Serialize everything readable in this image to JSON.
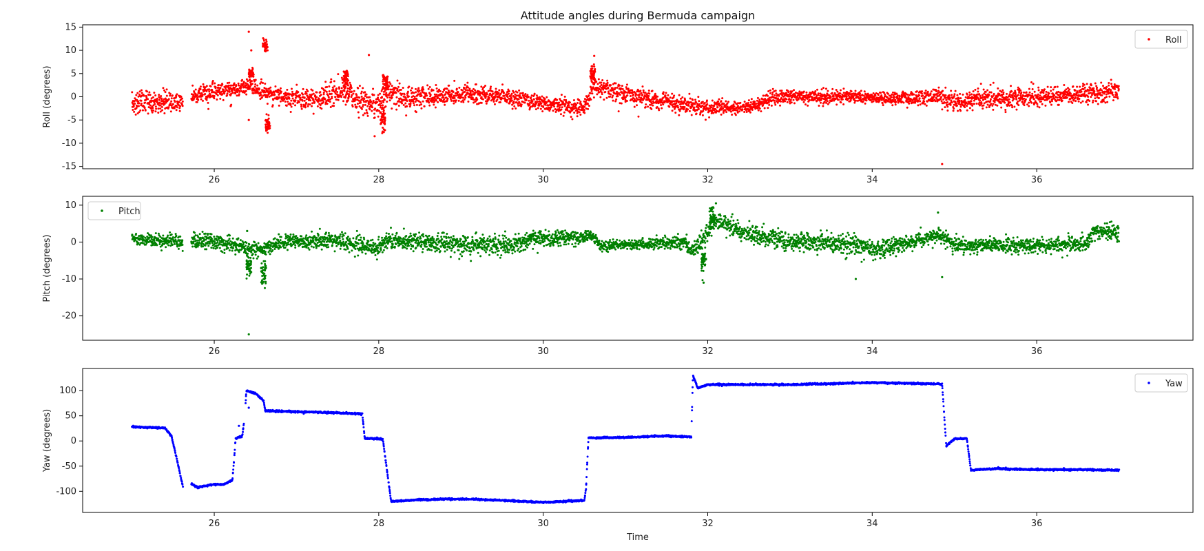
{
  "figure": {
    "title": "Attitude angles during Bermuda campaign",
    "xlabel": "Time"
  },
  "chart_data": [
    {
      "type": "scatter",
      "name": "roll-panel",
      "ylabel": "Roll (degrees)",
      "xlim": [
        24.4,
        37.9
      ],
      "ylim": [
        -15.5,
        15.5
      ],
      "xticks": [
        26,
        28,
        30,
        32,
        34,
        36
      ],
      "yticks": [
        -15,
        -10,
        -5,
        0,
        5,
        10,
        15
      ],
      "legend": "top-right",
      "series": [
        {
          "name": "Roll",
          "color": "#ff0000",
          "gaps": [
            [
              25.62,
              25.72
            ]
          ],
          "trend": [
            [
              25.0,
              -1.5
            ],
            [
              25.3,
              -1.2
            ],
            [
              25.62,
              -1.0
            ],
            [
              25.72,
              0.3
            ],
            [
              26.0,
              1.0
            ],
            [
              26.3,
              1.5
            ],
            [
              26.4,
              2.5
            ],
            [
              26.6,
              1.0
            ],
            [
              26.8,
              0.2
            ],
            [
              27.3,
              -0.5
            ],
            [
              27.55,
              1.5
            ],
            [
              27.7,
              -0.5
            ],
            [
              28.0,
              -2.0
            ],
            [
              28.1,
              1.0
            ],
            [
              28.3,
              0.0
            ],
            [
              29.0,
              0.5
            ],
            [
              29.5,
              0.0
            ],
            [
              30.0,
              -1.5
            ],
            [
              30.5,
              -2.5
            ],
            [
              30.6,
              2.0
            ],
            [
              31.0,
              0.5
            ],
            [
              31.5,
              -1.0
            ],
            [
              32.0,
              -2.5
            ],
            [
              32.6,
              -2.0
            ],
            [
              32.8,
              0.0
            ],
            [
              33.5,
              0.0
            ],
            [
              33.9,
              0.0
            ],
            [
              34.2,
              -0.5
            ],
            [
              34.8,
              0.0
            ],
            [
              35.0,
              -1.5
            ],
            [
              35.2,
              -0.5
            ],
            [
              36.0,
              0.0
            ],
            [
              36.5,
              0.5
            ],
            [
              37.0,
              1.0
            ]
          ],
          "spread": [
            [
              25.0,
              2.5
            ],
            [
              26.0,
              1.5
            ],
            [
              27.0,
              1.8
            ],
            [
              28.0,
              2.5
            ],
            [
              29.0,
              1.8
            ],
            [
              30.0,
              1.6
            ],
            [
              31.0,
              2.0
            ],
            [
              32.0,
              1.4
            ],
            [
              33.0,
              1.4
            ],
            [
              34.0,
              1.2
            ],
            [
              35.0,
              1.8
            ],
            [
              36.0,
              1.8
            ],
            [
              37.0,
              2.0
            ]
          ],
          "clusters": [
            [
              26.62,
              11.0,
              1.2
            ],
            [
              27.6,
              4.0,
              1.5
            ],
            [
              28.05,
              -5.0,
              2.0
            ],
            [
              28.08,
              3.0,
              2.0
            ],
            [
              30.6,
              5.0,
              1.5
            ],
            [
              26.65,
              -6.0,
              1.5
            ],
            [
              26.45,
              5.0,
              1.0
            ]
          ],
          "outliers": [
            [
              26.42,
              14.0
            ],
            [
              26.45,
              10.0
            ],
            [
              27.88,
              9.0
            ],
            [
              27.95,
              -8.5
            ],
            [
              30.62,
              8.8
            ],
            [
              34.85,
              -14.5
            ],
            [
              26.42,
              -5.0
            ],
            [
              26.2,
              -2.0
            ]
          ]
        }
      ]
    },
    {
      "type": "scatter",
      "name": "pitch-panel",
      "ylabel": "Pitch (degrees)",
      "xlim": [
        24.4,
        37.9
      ],
      "ylim": [
        -26.6,
        12.4
      ],
      "xticks": [
        26,
        28,
        30,
        32,
        34,
        36
      ],
      "yticks": [
        -20,
        -10,
        0,
        10
      ],
      "legend": "top-left",
      "series": [
        {
          "name": "Pitch",
          "color": "#008000",
          "gaps": [
            [
              25.62,
              25.72
            ]
          ],
          "trend": [
            [
              25.0,
              1.0
            ],
            [
              25.6,
              0.0
            ],
            [
              25.72,
              0.5
            ],
            [
              26.0,
              0.0
            ],
            [
              26.4,
              -1.5
            ],
            [
              26.6,
              -2.0
            ],
            [
              26.8,
              0.0
            ],
            [
              27.4,
              0.5
            ],
            [
              28.0,
              -1.5
            ],
            [
              28.1,
              0.5
            ],
            [
              29.0,
              -0.5
            ],
            [
              29.5,
              -1.0
            ],
            [
              30.0,
              1.0
            ],
            [
              30.6,
              1.5
            ],
            [
              30.7,
              -1.0
            ],
            [
              31.7,
              0.0
            ],
            [
              31.8,
              -2.5
            ],
            [
              31.95,
              1.5
            ],
            [
              32.1,
              6.0
            ],
            [
              32.4,
              2.5
            ],
            [
              33.0,
              0.0
            ],
            [
              33.8,
              -0.5
            ],
            [
              34.0,
              -2.0
            ],
            [
              34.6,
              0.5
            ],
            [
              34.8,
              2.0
            ],
            [
              35.0,
              -1.0
            ],
            [
              36.0,
              -1.0
            ],
            [
              36.6,
              -0.5
            ],
            [
              36.7,
              3.0
            ],
            [
              37.0,
              2.5
            ]
          ],
          "spread": [
            [
              25.0,
              1.6
            ],
            [
              26.0,
              2.0
            ],
            [
              27.0,
              1.8
            ],
            [
              28.0,
              2.2
            ],
            [
              29.0,
              2.3
            ],
            [
              30.0,
              2.2
            ],
            [
              31.0,
              0.9
            ],
            [
              32.0,
              2.5
            ],
            [
              33.0,
              2.2
            ],
            [
              34.0,
              2.4
            ],
            [
              35.0,
              1.8
            ],
            [
              36.0,
              1.8
            ],
            [
              37.0,
              2.0
            ]
          ],
          "clusters": [
            [
              26.42,
              -6.5,
              2.5
            ],
            [
              26.6,
              -9.0,
              3.0
            ],
            [
              31.95,
              -5.0,
              3.0
            ],
            [
              32.05,
              6.5,
              2.5
            ]
          ],
          "outliers": [
            [
              26.42,
              -25.0
            ],
            [
              26.4,
              3.0
            ],
            [
              33.8,
              -10.0
            ],
            [
              34.85,
              -9.5
            ],
            [
              31.95,
              -11.0
            ],
            [
              32.1,
              10.5
            ],
            [
              34.8,
              8.0
            ]
          ]
        }
      ]
    },
    {
      "type": "scatter",
      "name": "yaw-panel",
      "ylabel": "Yaw (degrees)",
      "xlim": [
        24.4,
        37.9
      ],
      "ylim": [
        -142,
        144
      ],
      "xticks": [
        26,
        28,
        30,
        32,
        34,
        36
      ],
      "yticks": [
        -100,
        -50,
        0,
        50,
        100
      ],
      "legend": "top-right",
      "series": [
        {
          "name": "Yaw",
          "color": "#0000ff",
          "gaps": [
            [
              25.62,
              25.72
            ],
            [
              26.36,
              26.38
            ]
          ],
          "trend": [
            [
              25.0,
              28
            ],
            [
              25.2,
              27
            ],
            [
              25.4,
              26
            ],
            [
              25.48,
              10
            ],
            [
              25.55,
              -40
            ],
            [
              25.62,
              -92
            ],
            [
              25.72,
              -85
            ],
            [
              25.8,
              -92
            ],
            [
              26.0,
              -86
            ],
            [
              26.1,
              -87
            ],
            [
              26.2,
              -80
            ],
            [
              26.22,
              -78
            ],
            [
              26.24,
              -40
            ],
            [
              26.26,
              5
            ],
            [
              26.34,
              10
            ],
            [
              26.37,
              45
            ],
            [
              26.39,
              100
            ],
            [
              26.5,
              95
            ],
            [
              26.6,
              80
            ],
            [
              26.62,
              60
            ],
            [
              27.0,
              58
            ],
            [
              27.5,
              56
            ],
            [
              27.8,
              54
            ],
            [
              27.83,
              5
            ],
            [
              28.05,
              4
            ],
            [
              28.15,
              -120
            ],
            [
              28.5,
              -117
            ],
            [
              29.0,
              -115
            ],
            [
              29.5,
              -118
            ],
            [
              30.0,
              -122
            ],
            [
              30.5,
              -118
            ],
            [
              30.52,
              -95
            ],
            [
              30.55,
              6
            ],
            [
              31.0,
              7
            ],
            [
              31.5,
              10
            ],
            [
              31.8,
              8
            ],
            [
              31.82,
              130
            ],
            [
              31.88,
              105
            ],
            [
              32.0,
              112
            ],
            [
              33.0,
              112
            ],
            [
              34.0,
              116
            ],
            [
              34.85,
              113
            ],
            [
              34.9,
              -10
            ],
            [
              35.0,
              4
            ],
            [
              35.15,
              5
            ],
            [
              35.2,
              -58
            ],
            [
              35.5,
              -55
            ],
            [
              36.0,
              -57
            ],
            [
              36.5,
              -57
            ],
            [
              37.0,
              -58
            ]
          ],
          "spread": [
            [
              25.0,
              1.5
            ],
            [
              30.0,
              1.5
            ],
            [
              37.0,
              1.5
            ]
          ],
          "clusters": [],
          "outliers": [
            [
              26.42,
              66
            ],
            [
              26.3,
              30
            ]
          ]
        }
      ]
    }
  ]
}
